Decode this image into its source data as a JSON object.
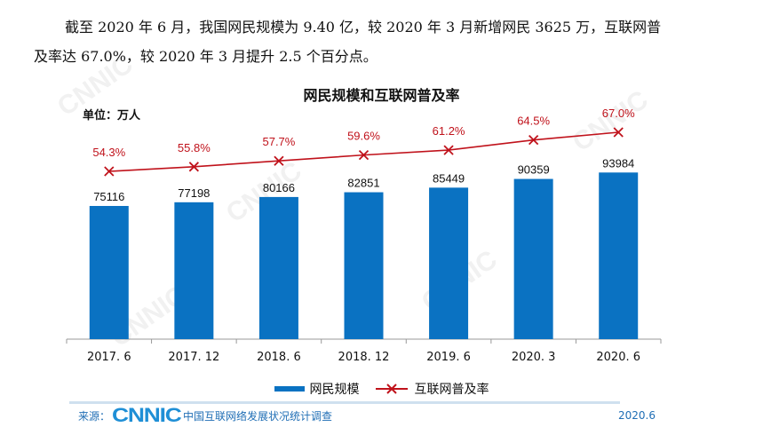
{
  "paragraph": {
    "line1": "截至 2020 年 6 月，我国网民规模为 9.40 亿，较 2020 年 3 月新增网民 3625 万，互联网普",
    "line2": "及率达 67.0%，较 2020 年 3 月提升 2.5 个百分点。"
  },
  "chart_data": {
    "type": "bar+line",
    "title": "网民规模和互联网普及率",
    "unit_label": "单位：万人",
    "categories": [
      "2017. 6",
      "2017. 12",
      "2018. 6",
      "2018. 12",
      "2019. 6",
      "2020. 3",
      "2020. 6"
    ],
    "series": [
      {
        "name": "网民规模",
        "type": "bar",
        "color": "#0a72c2",
        "values": [
          75116,
          77198,
          80166,
          82851,
          85449,
          90359,
          93984
        ]
      },
      {
        "name": "互联网普及率",
        "type": "line",
        "color": "#c0121b",
        "marker": "x",
        "values": [
          54.3,
          55.8,
          57.7,
          59.6,
          61.2,
          64.5,
          67.0
        ],
        "labels": [
          "54.3%",
          "55.8%",
          "57.7%",
          "59.6%",
          "61.2%",
          "64.5%",
          "67.0%"
        ]
      }
    ],
    "legend": "bottom",
    "grid": false
  },
  "footer": {
    "source_label": "来源：",
    "logo": "CNNIC",
    "survey": "中国互联网络发展状况统计调查",
    "date": "2020.6"
  }
}
